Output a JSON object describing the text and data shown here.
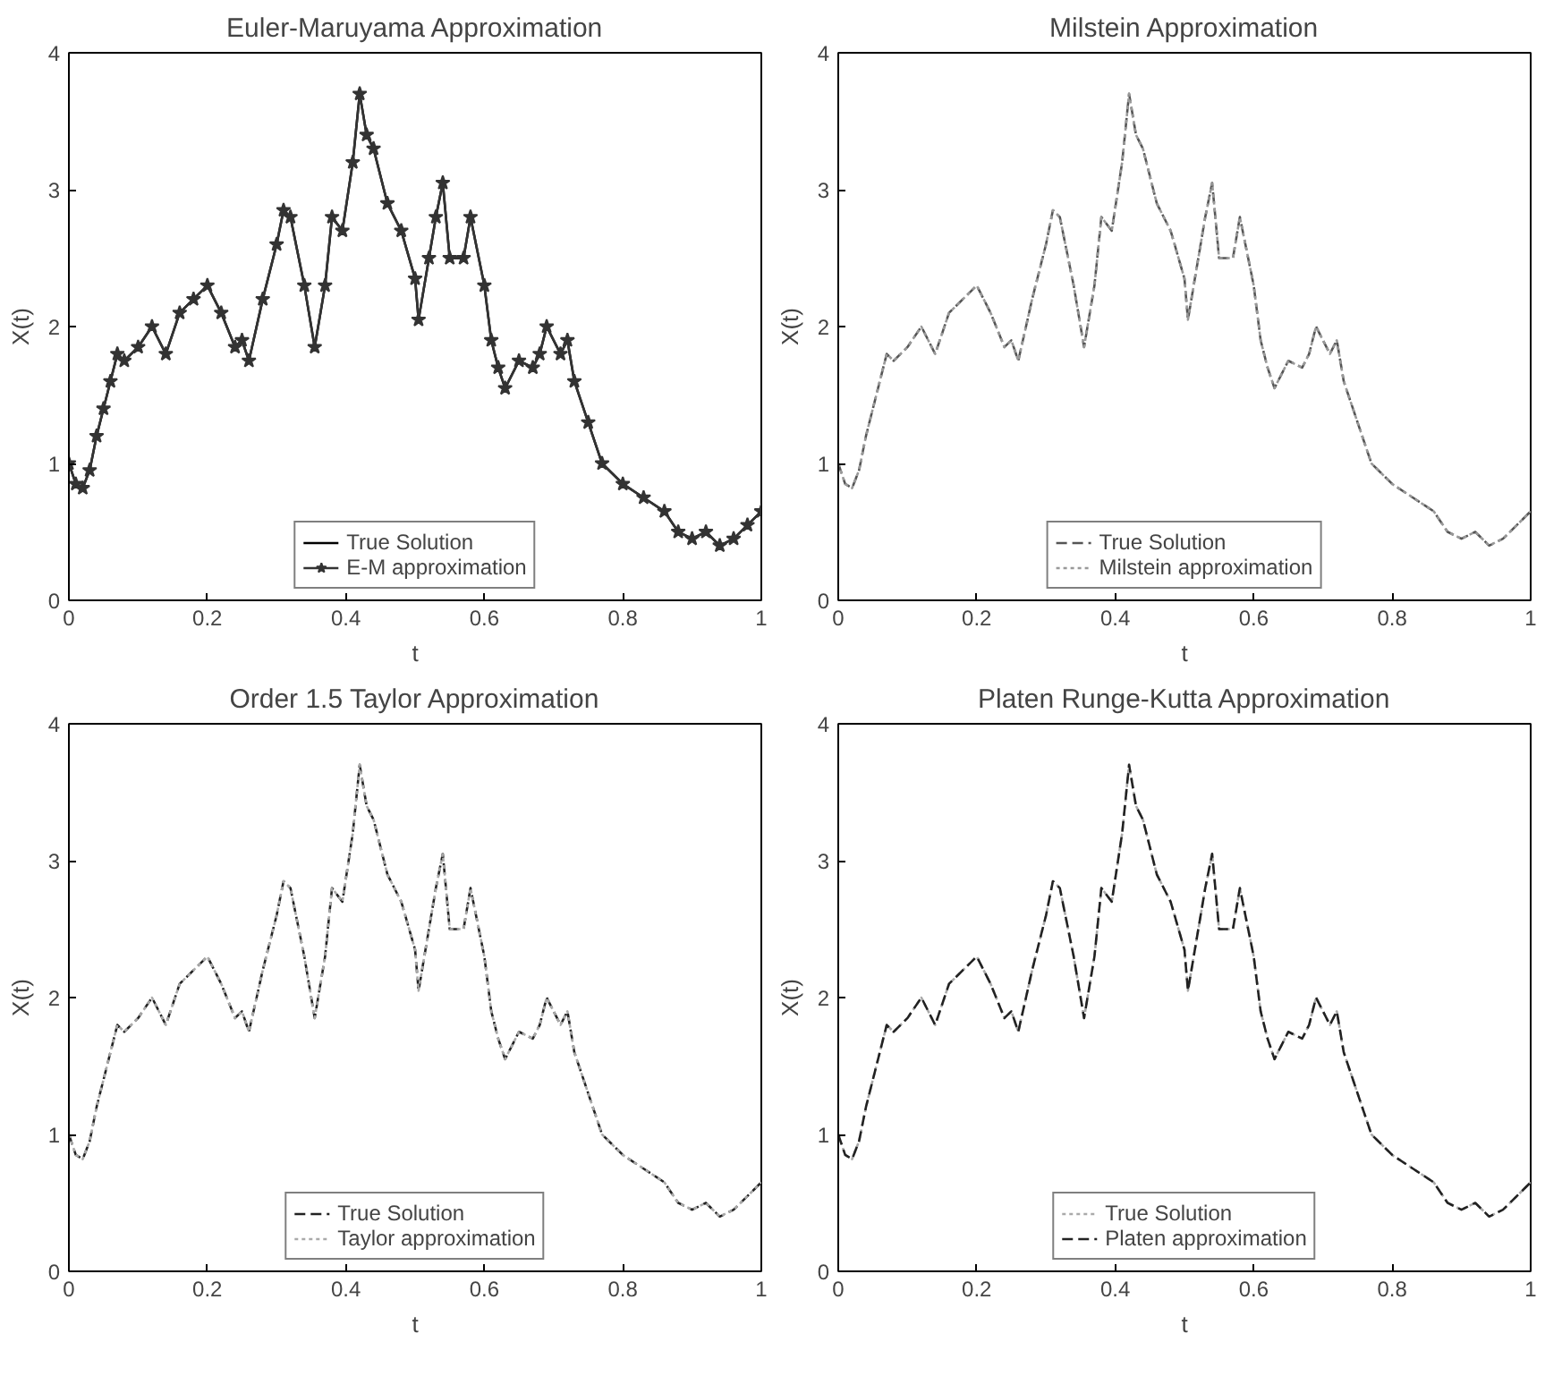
{
  "chart_data": [
    {
      "type": "line",
      "title": "Euler-Maruyama Approximation",
      "xlabel": "t",
      "ylabel": "X(t)",
      "xlim": [
        0,
        1
      ],
      "xticks": [
        0,
        0.2,
        0.4,
        0.6,
        0.8,
        1
      ],
      "ylim": [
        0,
        4
      ],
      "yticks": [
        0,
        1,
        2,
        3,
        4
      ],
      "grid": false,
      "legend": "bottom",
      "x": [
        0,
        0.01,
        0.02,
        0.03,
        0.04,
        0.05,
        0.06,
        0.07,
        0.08,
        0.1,
        0.12,
        0.14,
        0.16,
        0.18,
        0.2,
        0.22,
        0.24,
        0.25,
        0.26,
        0.28,
        0.3,
        0.31,
        0.32,
        0.34,
        0.355,
        0.37,
        0.38,
        0.395,
        0.41,
        0.42,
        0.43,
        0.44,
        0.46,
        0.48,
        0.5,
        0.505,
        0.52,
        0.53,
        0.54,
        0.55,
        0.57,
        0.58,
        0.6,
        0.61,
        0.62,
        0.63,
        0.65,
        0.67,
        0.68,
        0.69,
        0.71,
        0.72,
        0.73,
        0.75,
        0.77,
        0.8,
        0.83,
        0.86,
        0.88,
        0.9,
        0.92,
        0.94,
        0.96,
        0.98,
        1.0
      ],
      "series": [
        {
          "name": "True Solution",
          "color": "#000000",
          "line_style": "solid",
          "marker": "none",
          "values": [
            1.0,
            0.85,
            0.82,
            0.95,
            1.2,
            1.4,
            1.6,
            1.8,
            1.75,
            1.85,
            2.0,
            1.8,
            2.1,
            2.2,
            2.3,
            2.1,
            1.85,
            1.9,
            1.75,
            2.2,
            2.6,
            2.85,
            2.8,
            2.3,
            1.85,
            2.3,
            2.8,
            2.7,
            3.2,
            3.7,
            3.4,
            3.3,
            2.9,
            2.7,
            2.35,
            2.05,
            2.5,
            2.8,
            3.05,
            2.5,
            2.5,
            2.8,
            2.3,
            1.9,
            1.7,
            1.55,
            1.75,
            1.7,
            1.8,
            2.0,
            1.8,
            1.9,
            1.6,
            1.3,
            1.0,
            0.85,
            0.75,
            0.65,
            0.5,
            0.45,
            0.5,
            0.4,
            0.45,
            0.55,
            0.65
          ]
        },
        {
          "name": "E-M approximation",
          "color": "#333333",
          "line_style": "solid",
          "marker": "star",
          "values": [
            1.0,
            0.85,
            0.82,
            0.95,
            1.2,
            1.4,
            1.6,
            1.8,
            1.75,
            1.85,
            2.0,
            1.8,
            2.1,
            2.2,
            2.3,
            2.1,
            1.85,
            1.9,
            1.75,
            2.2,
            2.6,
            2.85,
            2.8,
            2.3,
            1.85,
            2.3,
            2.8,
            2.7,
            3.2,
            3.7,
            3.4,
            3.3,
            2.9,
            2.7,
            2.35,
            2.05,
            2.5,
            2.8,
            3.05,
            2.5,
            2.5,
            2.8,
            2.3,
            1.9,
            1.7,
            1.55,
            1.75,
            1.7,
            1.8,
            2.0,
            1.8,
            1.9,
            1.6,
            1.3,
            1.0,
            0.85,
            0.75,
            0.65,
            0.5,
            0.45,
            0.5,
            0.4,
            0.45,
            0.55,
            0.65
          ]
        }
      ]
    },
    {
      "type": "line",
      "title": "Milstein Approximation",
      "xlabel": "t",
      "ylabel": "X(t)",
      "xlim": [
        0,
        1
      ],
      "xticks": [
        0,
        0.2,
        0.4,
        0.6,
        0.8,
        1
      ],
      "ylim": [
        0,
        4
      ],
      "yticks": [
        0,
        1,
        2,
        3,
        4
      ],
      "grid": false,
      "legend": "bottom",
      "x": [
        0,
        0.01,
        0.02,
        0.03,
        0.04,
        0.05,
        0.06,
        0.07,
        0.08,
        0.1,
        0.12,
        0.14,
        0.16,
        0.18,
        0.2,
        0.22,
        0.24,
        0.25,
        0.26,
        0.28,
        0.3,
        0.31,
        0.32,
        0.34,
        0.355,
        0.37,
        0.38,
        0.395,
        0.41,
        0.42,
        0.43,
        0.44,
        0.46,
        0.48,
        0.5,
        0.505,
        0.52,
        0.53,
        0.54,
        0.55,
        0.57,
        0.58,
        0.6,
        0.61,
        0.62,
        0.63,
        0.65,
        0.67,
        0.68,
        0.69,
        0.71,
        0.72,
        0.73,
        0.75,
        0.77,
        0.8,
        0.83,
        0.86,
        0.88,
        0.9,
        0.92,
        0.94,
        0.96,
        0.98,
        1.0
      ],
      "series": [
        {
          "name": "True Solution",
          "color": "#555555",
          "line_style": "dashed",
          "marker": "none",
          "values": [
            1.0,
            0.85,
            0.82,
            0.95,
            1.2,
            1.4,
            1.6,
            1.8,
            1.75,
            1.85,
            2.0,
            1.8,
            2.1,
            2.2,
            2.3,
            2.1,
            1.85,
            1.9,
            1.75,
            2.2,
            2.6,
            2.85,
            2.8,
            2.3,
            1.85,
            2.3,
            2.8,
            2.7,
            3.2,
            3.7,
            3.4,
            3.3,
            2.9,
            2.7,
            2.35,
            2.05,
            2.5,
            2.8,
            3.05,
            2.5,
            2.5,
            2.8,
            2.3,
            1.9,
            1.7,
            1.55,
            1.75,
            1.7,
            1.8,
            2.0,
            1.8,
            1.9,
            1.6,
            1.3,
            1.0,
            0.85,
            0.75,
            0.65,
            0.5,
            0.45,
            0.5,
            0.4,
            0.45,
            0.55,
            0.65
          ]
        },
        {
          "name": "Milstein approximation",
          "color": "#999999",
          "line_style": "dotted",
          "marker": "none",
          "values": [
            1.0,
            0.85,
            0.82,
            0.95,
            1.2,
            1.4,
            1.6,
            1.8,
            1.75,
            1.85,
            2.0,
            1.8,
            2.1,
            2.2,
            2.3,
            2.1,
            1.85,
            1.9,
            1.75,
            2.2,
            2.6,
            2.85,
            2.8,
            2.3,
            1.85,
            2.3,
            2.8,
            2.7,
            3.2,
            3.7,
            3.4,
            3.3,
            2.9,
            2.7,
            2.35,
            2.05,
            2.5,
            2.8,
            3.05,
            2.5,
            2.5,
            2.8,
            2.3,
            1.9,
            1.7,
            1.55,
            1.75,
            1.7,
            1.8,
            2.0,
            1.8,
            1.9,
            1.6,
            1.3,
            1.0,
            0.85,
            0.75,
            0.65,
            0.5,
            0.45,
            0.5,
            0.4,
            0.45,
            0.55,
            0.65
          ]
        }
      ]
    },
    {
      "type": "line",
      "title": "Order 1.5 Taylor Approximation",
      "xlabel": "t",
      "ylabel": "X(t)",
      "xlim": [
        0,
        1
      ],
      "xticks": [
        0,
        0.2,
        0.4,
        0.6,
        0.8,
        1
      ],
      "ylim": [
        0,
        4
      ],
      "yticks": [
        0,
        1,
        2,
        3,
        4
      ],
      "grid": false,
      "legend": "bottom",
      "x": [
        0,
        0.01,
        0.02,
        0.03,
        0.04,
        0.05,
        0.06,
        0.07,
        0.08,
        0.1,
        0.12,
        0.14,
        0.16,
        0.18,
        0.2,
        0.22,
        0.24,
        0.25,
        0.26,
        0.28,
        0.3,
        0.31,
        0.32,
        0.34,
        0.355,
        0.37,
        0.38,
        0.395,
        0.41,
        0.42,
        0.43,
        0.44,
        0.46,
        0.48,
        0.5,
        0.505,
        0.52,
        0.53,
        0.54,
        0.55,
        0.57,
        0.58,
        0.6,
        0.61,
        0.62,
        0.63,
        0.65,
        0.67,
        0.68,
        0.69,
        0.71,
        0.72,
        0.73,
        0.75,
        0.77,
        0.8,
        0.83,
        0.86,
        0.88,
        0.9,
        0.92,
        0.94,
        0.96,
        0.98,
        1.0
      ],
      "series": [
        {
          "name": "True Solution",
          "color": "#222222",
          "line_style": "dashed",
          "marker": "none",
          "values": [
            1.0,
            0.85,
            0.82,
            0.95,
            1.2,
            1.4,
            1.6,
            1.8,
            1.75,
            1.85,
            2.0,
            1.8,
            2.1,
            2.2,
            2.3,
            2.1,
            1.85,
            1.9,
            1.75,
            2.2,
            2.6,
            2.85,
            2.8,
            2.3,
            1.85,
            2.3,
            2.8,
            2.7,
            3.2,
            3.7,
            3.4,
            3.3,
            2.9,
            2.7,
            2.35,
            2.05,
            2.5,
            2.8,
            3.05,
            2.5,
            2.5,
            2.8,
            2.3,
            1.9,
            1.7,
            1.55,
            1.75,
            1.7,
            1.8,
            2.0,
            1.8,
            1.9,
            1.6,
            1.3,
            1.0,
            0.85,
            0.75,
            0.65,
            0.5,
            0.45,
            0.5,
            0.4,
            0.45,
            0.55,
            0.65
          ]
        },
        {
          "name": "Taylor approximation",
          "color": "#aaaaaa",
          "line_style": "dotted",
          "marker": "none",
          "values": [
            1.0,
            0.85,
            0.82,
            0.95,
            1.2,
            1.4,
            1.6,
            1.8,
            1.75,
            1.85,
            2.0,
            1.8,
            2.1,
            2.2,
            2.3,
            2.1,
            1.85,
            1.9,
            1.75,
            2.2,
            2.6,
            2.85,
            2.8,
            2.3,
            1.85,
            2.3,
            2.8,
            2.7,
            3.2,
            3.7,
            3.4,
            3.3,
            2.9,
            2.7,
            2.35,
            2.05,
            2.5,
            2.8,
            3.05,
            2.5,
            2.5,
            2.8,
            2.3,
            1.9,
            1.7,
            1.55,
            1.75,
            1.7,
            1.8,
            2.0,
            1.8,
            1.9,
            1.6,
            1.3,
            1.0,
            0.85,
            0.75,
            0.65,
            0.5,
            0.45,
            0.5,
            0.4,
            0.45,
            0.55,
            0.65
          ]
        }
      ]
    },
    {
      "type": "line",
      "title": "Platen Runge-Kutta Approximation",
      "xlabel": "t",
      "ylabel": "X(t)",
      "xlim": [
        0,
        1
      ],
      "xticks": [
        0,
        0.2,
        0.4,
        0.6,
        0.8,
        1
      ],
      "ylim": [
        0,
        4
      ],
      "yticks": [
        0,
        1,
        2,
        3,
        4
      ],
      "grid": false,
      "legend": "bottom",
      "x": [
        0,
        0.01,
        0.02,
        0.03,
        0.04,
        0.05,
        0.06,
        0.07,
        0.08,
        0.1,
        0.12,
        0.14,
        0.16,
        0.18,
        0.2,
        0.22,
        0.24,
        0.25,
        0.26,
        0.28,
        0.3,
        0.31,
        0.32,
        0.34,
        0.355,
        0.37,
        0.38,
        0.395,
        0.41,
        0.42,
        0.43,
        0.44,
        0.46,
        0.48,
        0.5,
        0.505,
        0.52,
        0.53,
        0.54,
        0.55,
        0.57,
        0.58,
        0.6,
        0.61,
        0.62,
        0.63,
        0.65,
        0.67,
        0.68,
        0.69,
        0.71,
        0.72,
        0.73,
        0.75,
        0.77,
        0.8,
        0.83,
        0.86,
        0.88,
        0.9,
        0.92,
        0.94,
        0.96,
        0.98,
        1.0
      ],
      "series": [
        {
          "name": "True Solution",
          "color": "#aaaaaa",
          "line_style": "dotted",
          "marker": "none",
          "values": [
            1.0,
            0.85,
            0.82,
            0.95,
            1.2,
            1.4,
            1.6,
            1.8,
            1.75,
            1.85,
            2.0,
            1.8,
            2.1,
            2.2,
            2.3,
            2.1,
            1.85,
            1.9,
            1.75,
            2.2,
            2.6,
            2.85,
            2.8,
            2.3,
            1.85,
            2.3,
            2.8,
            2.7,
            3.2,
            3.7,
            3.4,
            3.3,
            2.9,
            2.7,
            2.35,
            2.05,
            2.5,
            2.8,
            3.05,
            2.5,
            2.5,
            2.8,
            2.3,
            1.9,
            1.7,
            1.55,
            1.75,
            1.7,
            1.8,
            2.0,
            1.8,
            1.9,
            1.6,
            1.3,
            1.0,
            0.85,
            0.75,
            0.65,
            0.5,
            0.45,
            0.5,
            0.4,
            0.45,
            0.55,
            0.65
          ]
        },
        {
          "name": "Platen approximation",
          "color": "#222222",
          "line_style": "dashed",
          "marker": "none",
          "values": [
            1.0,
            0.85,
            0.82,
            0.95,
            1.2,
            1.4,
            1.6,
            1.8,
            1.75,
            1.85,
            2.0,
            1.8,
            2.1,
            2.2,
            2.3,
            2.1,
            1.85,
            1.9,
            1.75,
            2.2,
            2.6,
            2.85,
            2.8,
            2.3,
            1.85,
            2.3,
            2.8,
            2.7,
            3.2,
            3.7,
            3.4,
            3.3,
            2.9,
            2.7,
            2.35,
            2.05,
            2.5,
            2.8,
            3.05,
            2.5,
            2.5,
            2.8,
            2.3,
            1.9,
            1.7,
            1.55,
            1.75,
            1.7,
            1.8,
            2.0,
            1.8,
            1.9,
            1.6,
            1.3,
            1.0,
            0.85,
            0.75,
            0.65,
            0.5,
            0.45,
            0.5,
            0.4,
            0.45,
            0.55,
            0.65
          ]
        }
      ]
    }
  ]
}
